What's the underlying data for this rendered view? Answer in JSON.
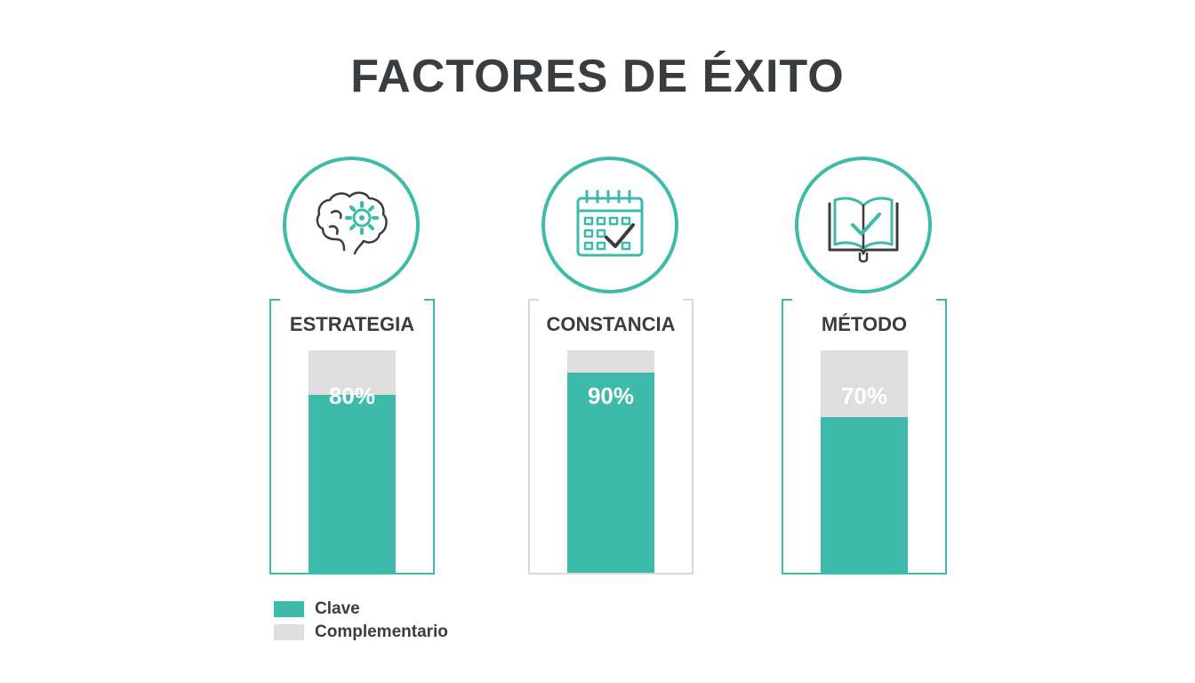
{
  "chart_data": {
    "type": "bar",
    "title": "FACTORES DE ÉXITO",
    "categories": [
      "ESTRATEGIA",
      "CONSTANCIA",
      "MÉTODO"
    ],
    "series": [
      {
        "name": "Clave",
        "values": [
          80,
          90,
          70
        ]
      }
    ],
    "value_labels": [
      "80%",
      "90%",
      "70%"
    ],
    "ylim": [
      0,
      100
    ],
    "legend": {
      "placement": "bottom-left",
      "entries": [
        {
          "label": "Clave",
          "color": "#3dbaa9"
        },
        {
          "label": "Complementario",
          "color": "#dedede"
        }
      ]
    },
    "icons": [
      "brain-gear-icon",
      "calendar-check-icon",
      "book-check-icon"
    ],
    "colors": {
      "accent": "#3dbaa9",
      "track": "#dedede",
      "text": "#3a3d40"
    }
  }
}
